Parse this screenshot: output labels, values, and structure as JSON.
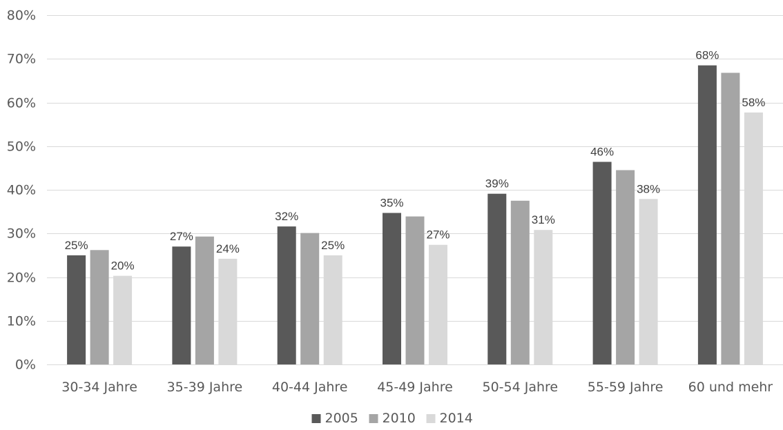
{
  "chart_data": {
    "type": "bar",
    "categories": [
      "30-34 Jahre",
      "35-39 Jahre",
      "40-44 Jahre",
      "45-49 Jahre",
      "50-54 Jahre",
      "55-59 Jahre",
      "60 und mehr"
    ],
    "series": [
      {
        "name": "2005",
        "color": "#595959",
        "values": [
          25,
          27,
          31.6,
          34.7,
          39.1,
          46.4,
          68.5
        ],
        "labels": [
          "25%",
          "27%",
          "32%",
          "35%",
          "39%",
          "46%",
          "68%"
        ]
      },
      {
        "name": "2010",
        "color": "#a5a5a5",
        "values": [
          26.2,
          29.3,
          30.1,
          33.9,
          37.5,
          44.5,
          66.8
        ],
        "labels": [
          "",
          "",
          "",
          "",
          "",
          "",
          ""
        ]
      },
      {
        "name": "2014",
        "color": "#d9d9d9",
        "values": [
          20.3,
          24.2,
          25,
          27.4,
          30.8,
          37.9,
          57.7
        ],
        "labels": [
          "20%",
          "24%",
          "25%",
          "27%",
          "31%",
          "38%",
          "58%"
        ]
      }
    ],
    "y_ticks": [
      "0%",
      "10%",
      "20%",
      "30%",
      "40%",
      "50%",
      "60%",
      "70%",
      "80%"
    ],
    "ylim": [
      0,
      80
    ],
    "xlabel": "",
    "ylabel": "",
    "title": "",
    "grid": true,
    "legend_position": "bottom"
  }
}
